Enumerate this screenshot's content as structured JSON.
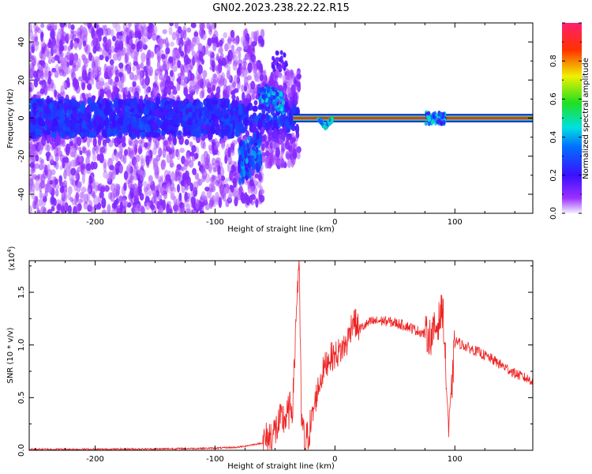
{
  "title": "GN02.2023.238.22.22.R15",
  "chart_data": [
    {
      "type": "heatmap",
      "xlabel": "Height of straight line (km)",
      "ylabel": "Frequency (Hz)",
      "xlim": [
        -255,
        165
      ],
      "ylim": [
        -50,
        50
      ],
      "x_ticks": [
        -200,
        -100,
        0,
        100
      ],
      "y_ticks": [
        -40,
        -20,
        0,
        20,
        40
      ],
      "colorbar": {
        "label": "Normalized spectral amplitude",
        "range": [
          0.0,
          1.0
        ],
        "ticks": [
          "0.0",
          "0.2",
          "0.4",
          "0.6",
          "0.8"
        ],
        "colormap": "rainbow (white → purple → blue → cyan → green → yellow → red)"
      },
      "features": [
        {
          "region": "-255 to -100 km",
          "description": "broadband scattered energy, mostly purple/blue, concentrated near 0 Hz"
        },
        {
          "region": "-70 km",
          "frequency": -20,
          "description": "dip to about -20 Hz"
        },
        {
          "region": "-60 to -50 km",
          "frequency": 9,
          "description": "burst near +9 Hz"
        },
        {
          "region": "-35 to 165 km",
          "frequency": 0,
          "description": "narrow high-amplitude (red) line at 0 Hz"
        },
        {
          "region": "-8 km",
          "frequency": -4,
          "description": "small dip to about -4 Hz"
        },
        {
          "region": "75 to 92 km",
          "frequency": 0,
          "description": "broadened cluster around 0 Hz"
        }
      ],
      "grid": false
    },
    {
      "type": "line",
      "xlabel": "Height of straight line (km)",
      "ylabel": "SNR (10 * v/v)",
      "y_scale_label": "(x10",
      "y_scale_exp": "4",
      "y_scale_close": ")",
      "xlim": [
        -255,
        165
      ],
      "ylim": [
        0,
        18000
      ],
      "x_ticks": [
        -200,
        -100,
        0,
        100
      ],
      "y_ticks": [
        0,
        5000,
        10000,
        15000
      ],
      "y_tick_labels": [
        "0.0",
        "0.5",
        "1.0",
        "1.5"
      ],
      "series": [
        {
          "color": "#ee2222",
          "points": [
            [
              -255,
              100
            ],
            [
              -200,
              100
            ],
            [
              -150,
              130
            ],
            [
              -100,
              200
            ],
            [
              -80,
              300
            ],
            [
              -60,
              700
            ],
            [
              -50,
              1800
            ],
            [
              -45,
              2800
            ],
            [
              -40,
              3200
            ],
            [
              -35,
              4500
            ],
            [
              -32,
              14000
            ],
            [
              -30,
              18000
            ],
            [
              -28,
              3000
            ],
            [
              -25,
              500
            ],
            [
              -20,
              2500
            ],
            [
              -15,
              5500
            ],
            [
              -10,
              7500
            ],
            [
              -5,
              8800
            ],
            [
              0,
              9000
            ],
            [
              5,
              9500
            ],
            [
              10,
              10200
            ],
            [
              15,
              12500
            ],
            [
              20,
              11500
            ],
            [
              30,
              12200
            ],
            [
              40,
              12300
            ],
            [
              50,
              12100
            ],
            [
              60,
              11800
            ],
            [
              70,
              11300
            ],
            [
              80,
              10800
            ],
            [
              85,
              11800
            ],
            [
              90,
              13500
            ],
            [
              95,
              1500
            ],
            [
              100,
              10400
            ],
            [
              110,
              9800
            ],
            [
              120,
              9300
            ],
            [
              130,
              8700
            ],
            [
              140,
              8000
            ],
            [
              150,
              7300
            ],
            [
              160,
              6800
            ],
            [
              165,
              6600
            ]
          ]
        }
      ],
      "grid": false
    }
  ]
}
